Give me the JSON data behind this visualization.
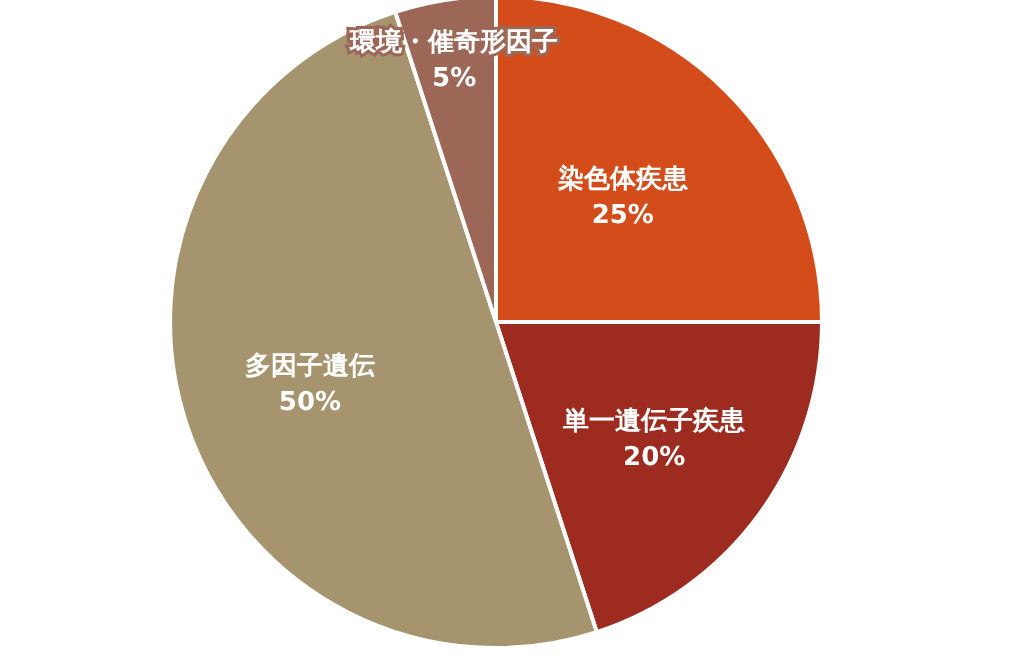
{
  "chart_data": {
    "type": "pie",
    "categories": [
      "染色体疾患",
      "単一遺伝子疾患",
      "多因子遺伝",
      "環境・催奇形因子"
    ],
    "values": [
      25,
      20,
      50,
      5
    ],
    "value_labels": [
      "25%",
      "20%",
      "50%",
      "5%"
    ],
    "colors": [
      "#d44c1a",
      "#9e2b1f",
      "#a6946f",
      "#9c6757"
    ]
  }
}
